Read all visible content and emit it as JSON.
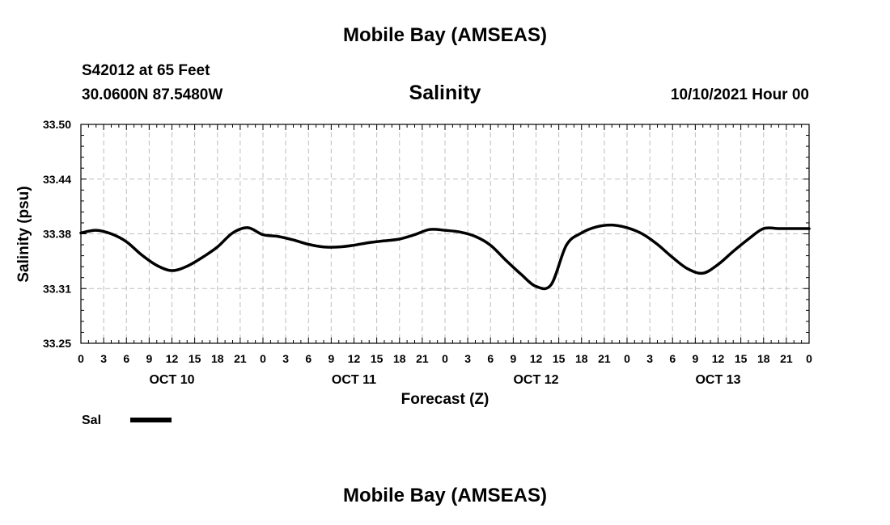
{
  "header": {
    "title": "Mobile Bay (AMSEAS)",
    "station": "S42012 at 65 Feet",
    "coords": "30.0600N  87.5480W",
    "variable": "Salinity",
    "datetime": "10/10/2021 Hour 00"
  },
  "footer": {
    "title": "Mobile Bay (AMSEAS)"
  },
  "chart_data": {
    "type": "line",
    "title": "Salinity",
    "xlabel": "Forecast (Z)",
    "ylabel": "Salinity (psu)",
    "ylim": [
      33.25,
      33.5
    ],
    "yticks": [
      "33.25",
      "33.31",
      "33.38",
      "33.44",
      "33.50"
    ],
    "ytick_values": [
      33.25,
      33.3125,
      33.375,
      33.4375,
      33.5
    ],
    "xlim": [
      0,
      96
    ],
    "xtick_labels": [
      "0",
      "3",
      "6",
      "9",
      "12",
      "15",
      "18",
      "21",
      "0",
      "3",
      "6",
      "9",
      "12",
      "15",
      "18",
      "21",
      "0",
      "3",
      "6",
      "9",
      "12",
      "15",
      "18",
      "21",
      "0",
      "3",
      "6",
      "9",
      "12",
      "15",
      "18",
      "21",
      "0"
    ],
    "day_labels": [
      {
        "label": "OCT 10",
        "hour": 12
      },
      {
        "label": "OCT 11",
        "hour": 36
      },
      {
        "label": "OCT 12",
        "hour": 60
      },
      {
        "label": "OCT 13",
        "hour": 84
      }
    ],
    "grid": true,
    "legend": "bottom-left",
    "series": [
      {
        "name": "Sal",
        "color": "#000000",
        "x": [
          0,
          2,
          4,
          6,
          8,
          10,
          12,
          14,
          16,
          18,
          20,
          22,
          24,
          26,
          28,
          30,
          32,
          34,
          36,
          38,
          40,
          42,
          44,
          46,
          48,
          50,
          52,
          54,
          56,
          58,
          60,
          62,
          64,
          66,
          68,
          70,
          72,
          74,
          76,
          78,
          80,
          82,
          84,
          86,
          88,
          90,
          92,
          94,
          96
        ],
        "values": [
          33.376,
          33.379,
          33.375,
          33.366,
          33.351,
          33.339,
          33.333,
          33.338,
          33.348,
          33.36,
          33.376,
          33.382,
          33.374,
          33.372,
          33.368,
          33.363,
          33.36,
          33.36,
          33.362,
          33.365,
          33.367,
          33.369,
          33.374,
          33.38,
          33.379,
          33.377,
          33.372,
          33.362,
          33.345,
          33.329,
          33.315,
          33.317,
          33.362,
          33.376,
          33.383,
          33.385,
          33.382,
          33.375,
          33.363,
          33.348,
          33.335,
          33.33,
          33.34,
          33.355,
          33.369,
          33.381,
          33.381,
          33.381,
          33.381
        ]
      }
    ]
  }
}
